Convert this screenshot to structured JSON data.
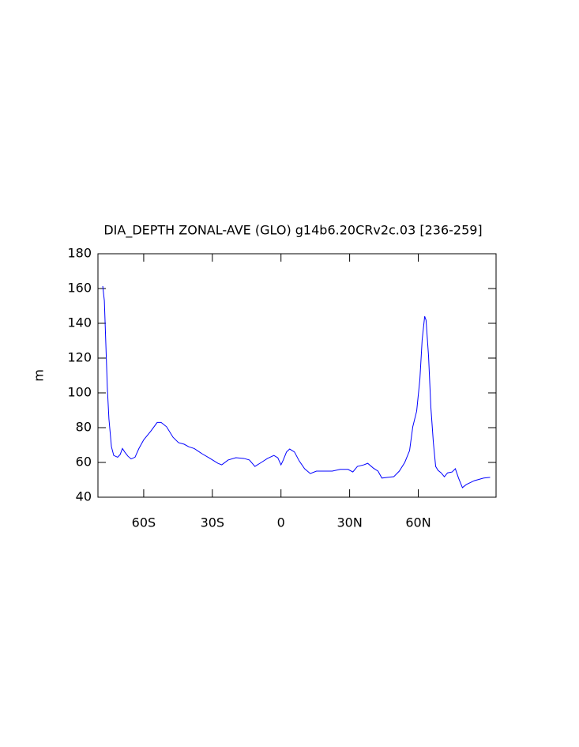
{
  "chart_data": {
    "type": "line",
    "title": "DIA_DEPTH ZONAL-AVE (GLO) g14b6.20CRv2c.03 [236-259]",
    "y_label": "m",
    "xlim": [
      -80,
      94
    ],
    "ylim": [
      40,
      180
    ],
    "xticks": [
      {
        "value": -60,
        "label": "60S"
      },
      {
        "value": -30,
        "label": "30S"
      },
      0,
      {
        "value": 30,
        "label": "30N"
      },
      {
        "value": 60,
        "label": "60N"
      }
    ],
    "yticks": [
      40,
      60,
      80,
      100,
      120,
      140,
      160,
      180
    ],
    "grid": false,
    "color": "#0000ff",
    "x": [
      -77.9,
      -77.2,
      -76.6,
      -75.9,
      -75.2,
      -74.1,
      -73.1,
      -71.4,
      -70.3,
      -69.3,
      -68.3,
      -66.9,
      -65.5,
      -63.8,
      -62.1,
      -60,
      -56.9,
      -54.1,
      -52.4,
      -50,
      -47.2,
      -44.8,
      -42.4,
      -40.3,
      -37.9,
      -34.5,
      -31,
      -27.6,
      -25.9,
      -23.1,
      -19.7,
      -16.2,
      -13.8,
      -11.4,
      -8.6,
      -5.9,
      -3.1,
      -1.4,
      0,
      1,
      2.4,
      3.8,
      5.9,
      7.9,
      10.3,
      12.8,
      15.5,
      19,
      22.4,
      25.9,
      29.3,
      31.4,
      33.4,
      36.2,
      37.9,
      40.3,
      42.4,
      44.1,
      46.6,
      49.3,
      51.7,
      54.1,
      56.2,
      57.6,
      59.3,
      60.7,
      61.7,
      62.8,
      63.4,
      64.5,
      65.5,
      66.6,
      67.6,
      68.6,
      70,
      71.4,
      72.8,
      74.8,
      76.2,
      77.6,
      79.3,
      81,
      84.5,
      88.6,
      91.4
    ],
    "values": [
      161.4,
      153,
      130,
      103,
      85,
      69,
      64,
      63,
      64.5,
      68,
      66,
      63.6,
      62,
      63,
      68,
      73,
      78,
      83,
      83,
      80.5,
      74.5,
      71.4,
      70.5,
      69,
      68,
      65,
      62.3,
      59.5,
      58.6,
      61.4,
      62.7,
      62.3,
      61.4,
      57.7,
      60,
      62.3,
      64,
      62.7,
      58.6,
      61.4,
      66,
      67.7,
      66,
      61,
      56.4,
      53.6,
      55,
      55,
      55,
      56,
      56,
      54.5,
      57.7,
      58.6,
      59.5,
      56.8,
      55,
      51,
      51.4,
      51.8,
      55,
      60,
      66.8,
      80.5,
      89.5,
      107.7,
      130.5,
      144,
      141.8,
      121,
      91.8,
      71.4,
      57.7,
      55.5,
      54,
      51.8,
      54,
      54.5,
      56.4,
      51,
      45.5,
      47.3,
      49.5,
      51,
      51.4
    ]
  }
}
